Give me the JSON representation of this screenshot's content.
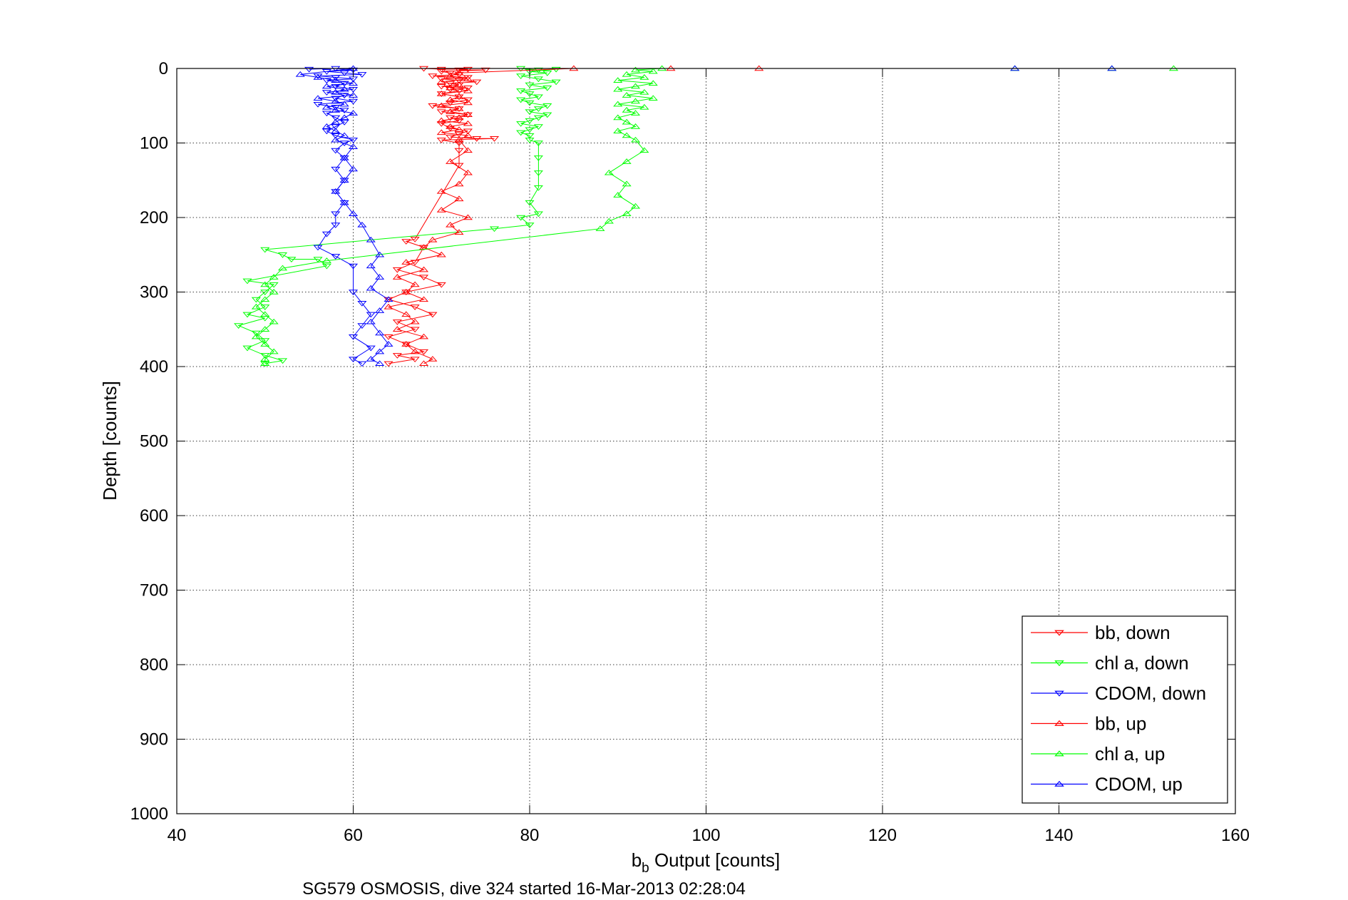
{
  "chart_data": {
    "type": "scatter",
    "xlabel_main": "b",
    "xlabel_sub": "b",
    "xlabel_rest": " Output [counts]",
    "ylabel": "Depth [counts]",
    "caption": "SG579 OSMOSIS, dive 324 started 16-Mar-2013 02:28:04",
    "xlim": [
      40,
      160
    ],
    "ylim": [
      0,
      1000
    ],
    "y_reversed": true,
    "grid": "dotted",
    "legend_position": "bottom-right",
    "xticks": [
      "40",
      "60",
      "80",
      "100",
      "120",
      "140",
      "160"
    ],
    "yticks": [
      "0",
      "100",
      "200",
      "300",
      "400",
      "500",
      "600",
      "700",
      "800",
      "900",
      "1000"
    ],
    "colors": {
      "bb": "#ff0000",
      "chl": "#00ff00",
      "cdom": "#0000ff"
    },
    "series": [
      {
        "name": "bb, down",
        "color": "#ff0000",
        "marker": "triangle-down",
        "connected": true,
        "points": [
          [
            68,
            0
          ],
          [
            70,
            1
          ],
          [
            73,
            1
          ],
          [
            72,
            2
          ],
          [
            75,
            2
          ],
          [
            70,
            4
          ],
          [
            71,
            6
          ],
          [
            72,
            8
          ],
          [
            69,
            10
          ],
          [
            73,
            12
          ],
          [
            70,
            14
          ],
          [
            72,
            16
          ],
          [
            74,
            18
          ],
          [
            71,
            20
          ],
          [
            72,
            22
          ],
          [
            70,
            24
          ],
          [
            73,
            26
          ],
          [
            71,
            28
          ],
          [
            72,
            30
          ],
          [
            70,
            34
          ],
          [
            72,
            38
          ],
          [
            73,
            42
          ],
          [
            71,
            46
          ],
          [
            69,
            50
          ],
          [
            72,
            54
          ],
          [
            70,
            58
          ],
          [
            73,
            62
          ],
          [
            71,
            66
          ],
          [
            72,
            70
          ],
          [
            70,
            74
          ],
          [
            71,
            80
          ],
          [
            73,
            84
          ],
          [
            72,
            88
          ],
          [
            71,
            92
          ],
          [
            74,
            94
          ],
          [
            76,
            94
          ],
          [
            70,
            96
          ],
          [
            72,
            100
          ],
          [
            72,
            110
          ],
          [
            72,
            130
          ],
          [
            67,
            229
          ],
          [
            66,
            232
          ],
          [
            68,
            240
          ],
          [
            67,
            260
          ],
          [
            65,
            270
          ],
          [
            68,
            280
          ],
          [
            70,
            290
          ],
          [
            66,
            300
          ],
          [
            64,
            310
          ],
          [
            67,
            320
          ],
          [
            69,
            330
          ],
          [
            65,
            340
          ],
          [
            67,
            350
          ],
          [
            64,
            360
          ],
          [
            66,
            370
          ],
          [
            68,
            380
          ],
          [
            65,
            385
          ],
          [
            67,
            390
          ],
          [
            64,
            396
          ]
        ]
      },
      {
        "name": "chl a, down",
        "color": "#00ff00",
        "marker": "triangle-down",
        "connected": true,
        "points": [
          [
            79,
            0
          ],
          [
            81,
            2
          ],
          [
            83,
            1
          ],
          [
            80,
            4
          ],
          [
            82,
            6
          ],
          [
            79,
            10
          ],
          [
            81,
            14
          ],
          [
            83,
            18
          ],
          [
            80,
            22
          ],
          [
            82,
            26
          ],
          [
            79,
            30
          ],
          [
            80,
            34
          ],
          [
            81,
            38
          ],
          [
            79,
            42
          ],
          [
            80,
            46
          ],
          [
            82,
            50
          ],
          [
            81,
            54
          ],
          [
            80,
            58
          ],
          [
            82,
            62
          ],
          [
            81,
            66
          ],
          [
            80,
            70
          ],
          [
            79,
            74
          ],
          [
            81,
            78
          ],
          [
            80,
            82
          ],
          [
            79,
            86
          ],
          [
            80,
            90
          ],
          [
            80,
            96
          ],
          [
            81,
            100
          ],
          [
            81,
            120
          ],
          [
            81,
            140
          ],
          [
            81,
            160
          ],
          [
            80,
            180
          ],
          [
            81,
            195
          ],
          [
            79,
            200
          ],
          [
            80,
            210
          ],
          [
            76,
            215
          ],
          [
            50,
            243
          ],
          [
            52,
            250
          ],
          [
            53,
            256
          ],
          [
            56,
            256
          ],
          [
            57,
            265
          ],
          [
            48,
            285
          ],
          [
            51,
            290
          ],
          [
            50,
            300
          ],
          [
            49,
            310
          ],
          [
            50,
            320
          ],
          [
            48,
            330
          ],
          [
            50,
            335
          ],
          [
            47,
            345
          ],
          [
            49,
            355
          ],
          [
            50,
            365
          ],
          [
            48,
            375
          ],
          [
            50,
            385
          ],
          [
            52,
            392
          ],
          [
            50,
            396
          ]
        ]
      },
      {
        "name": "CDOM, down",
        "color": "#0000ff",
        "marker": "triangle-down",
        "connected": true,
        "points": [
          [
            55,
            1
          ],
          [
            58,
            0
          ],
          [
            60,
            2
          ],
          [
            57,
            4
          ],
          [
            59,
            6
          ],
          [
            61,
            8
          ],
          [
            56,
            10
          ],
          [
            58,
            12
          ],
          [
            60,
            14
          ],
          [
            57,
            16
          ],
          [
            59,
            20
          ],
          [
            58,
            24
          ],
          [
            60,
            28
          ],
          [
            57,
            32
          ],
          [
            59,
            36
          ],
          [
            58,
            40
          ],
          [
            60,
            44
          ],
          [
            56,
            48
          ],
          [
            58,
            52
          ],
          [
            59,
            56
          ],
          [
            57,
            60
          ],
          [
            58,
            66
          ],
          [
            59,
            72
          ],
          [
            58,
            78
          ],
          [
            57,
            84
          ],
          [
            58,
            90
          ],
          [
            60,
            96
          ],
          [
            59,
            100
          ],
          [
            58,
            110
          ],
          [
            59,
            120
          ],
          [
            58,
            135
          ],
          [
            59,
            150
          ],
          [
            58,
            165
          ],
          [
            59,
            180
          ],
          [
            58,
            195
          ],
          [
            58,
            210
          ],
          [
            57,
            222
          ],
          [
            56,
            240
          ],
          [
            58,
            252
          ],
          [
            60,
            265
          ],
          [
            60,
            300
          ],
          [
            61,
            315
          ],
          [
            62,
            330
          ],
          [
            61,
            345
          ],
          [
            60,
            360
          ],
          [
            62,
            375
          ],
          [
            60,
            390
          ],
          [
            61,
            396
          ]
        ]
      },
      {
        "name": "bb, up",
        "color": "#ff0000",
        "marker": "triangle-up",
        "connected": true,
        "points": [
          [
            106,
            0
          ],
          [
            96,
            0
          ],
          [
            85,
            0
          ],
          [
            72,
            6
          ],
          [
            71,
            10
          ],
          [
            73,
            14
          ],
          [
            70,
            18
          ],
          [
            72,
            22
          ],
          [
            71,
            26
          ],
          [
            73,
            30
          ],
          [
            70,
            34
          ],
          [
            72,
            38
          ],
          [
            71,
            42
          ],
          [
            73,
            46
          ],
          [
            70,
            50
          ],
          [
            72,
            54
          ],
          [
            71,
            58
          ],
          [
            73,
            62
          ],
          [
            72,
            66
          ],
          [
            70,
            70
          ],
          [
            73,
            74
          ],
          [
            71,
            78
          ],
          [
            72,
            82
          ],
          [
            70,
            86
          ],
          [
            73,
            90
          ],
          [
            72,
            96
          ],
          [
            73,
            110
          ],
          [
            71,
            125
          ],
          [
            73,
            140
          ],
          [
            72,
            155
          ],
          [
            70,
            165
          ],
          [
            72,
            175
          ],
          [
            70,
            190
          ],
          [
            73,
            200
          ],
          [
            71,
            210
          ],
          [
            72,
            220
          ],
          [
            69,
            230
          ],
          [
            68,
            240
          ],
          [
            70,
            250
          ],
          [
            66,
            260
          ],
          [
            68,
            270
          ],
          [
            65,
            280
          ],
          [
            67,
            290
          ],
          [
            66,
            300
          ],
          [
            68,
            310
          ],
          [
            64,
            320
          ],
          [
            66,
            330
          ],
          [
            67,
            340
          ],
          [
            65,
            350
          ],
          [
            68,
            360
          ],
          [
            66,
            370
          ],
          [
            67,
            380
          ],
          [
            69,
            390
          ],
          [
            68,
            396
          ]
        ]
      },
      {
        "name": "chl a, up",
        "color": "#00ff00",
        "marker": "triangle-up",
        "connected": true,
        "points": [
          [
            153,
            0
          ],
          [
            146,
            0
          ],
          [
            135,
            0
          ],
          [
            95,
            0
          ],
          [
            92,
            2
          ],
          [
            94,
            4
          ],
          [
            91,
            8
          ],
          [
            93,
            12
          ],
          [
            90,
            16
          ],
          [
            94,
            20
          ],
          [
            92,
            24
          ],
          [
            90,
            28
          ],
          [
            93,
            32
          ],
          [
            91,
            36
          ],
          [
            94,
            40
          ],
          [
            92,
            44
          ],
          [
            90,
            48
          ],
          [
            93,
            52
          ],
          [
            91,
            56
          ],
          [
            92,
            60
          ],
          [
            90,
            66
          ],
          [
            91,
            72
          ],
          [
            92,
            78
          ],
          [
            90,
            84
          ],
          [
            91,
            90
          ],
          [
            92,
            96
          ],
          [
            93,
            110
          ],
          [
            91,
            125
          ],
          [
            89,
            140
          ],
          [
            91,
            155
          ],
          [
            90,
            170
          ],
          [
            92,
            185
          ],
          [
            91,
            195
          ],
          [
            89,
            205
          ],
          [
            88,
            215
          ],
          [
            57,
            258
          ],
          [
            52,
            268
          ],
          [
            51,
            280
          ],
          [
            50,
            290
          ],
          [
            51,
            300
          ],
          [
            50,
            310
          ],
          [
            49,
            320
          ],
          [
            50,
            330
          ],
          [
            51,
            340
          ],
          [
            50,
            350
          ],
          [
            49,
            360
          ],
          [
            50,
            370
          ],
          [
            51,
            380
          ],
          [
            50,
            390
          ],
          [
            50,
            396
          ]
        ]
      },
      {
        "name": "CDOM, up",
        "color": "#0000ff",
        "marker": "triangle-up",
        "connected": true,
        "points": [
          [
            146,
            0
          ],
          [
            135,
            0
          ],
          [
            60,
            0
          ],
          [
            54,
            8
          ],
          [
            56,
            12
          ],
          [
            58,
            16
          ],
          [
            60,
            20
          ],
          [
            57,
            24
          ],
          [
            59,
            28
          ],
          [
            58,
            32
          ],
          [
            60,
            36
          ],
          [
            56,
            40
          ],
          [
            58,
            44
          ],
          [
            59,
            48
          ],
          [
            57,
            52
          ],
          [
            58,
            56
          ],
          [
            60,
            60
          ],
          [
            59,
            66
          ],
          [
            58,
            72
          ],
          [
            57,
            78
          ],
          [
            58,
            84
          ],
          [
            59,
            90
          ],
          [
            58,
            96
          ],
          [
            60,
            105
          ],
          [
            59,
            120
          ],
          [
            60,
            135
          ],
          [
            59,
            150
          ],
          [
            58,
            165
          ],
          [
            59,
            180
          ],
          [
            60,
            195
          ],
          [
            61,
            210
          ],
          [
            62,
            230
          ],
          [
            63,
            250
          ],
          [
            62,
            265
          ],
          [
            63,
            280
          ],
          [
            62,
            295
          ],
          [
            64,
            310
          ],
          [
            63,
            325
          ],
          [
            62,
            340
          ],
          [
            63,
            355
          ],
          [
            64,
            370
          ],
          [
            63,
            380
          ],
          [
            62,
            390
          ],
          [
            63,
            396
          ]
        ]
      }
    ]
  }
}
